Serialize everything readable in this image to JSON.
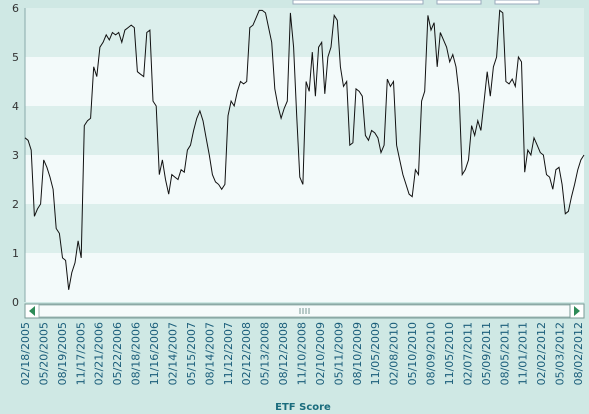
{
  "chart_data": {
    "type": "line",
    "title": "",
    "xlabel": "ETF Score",
    "ylabel": "",
    "ylim": [
      0,
      6
    ],
    "yticks": [
      0,
      1,
      2,
      3,
      4,
      5,
      6
    ],
    "grid": true,
    "legend": "none",
    "x_tick_labels": [
      "02/18/2005",
      "05/20/2005",
      "08/19/2005",
      "11/17/2005",
      "02/21/2006",
      "05/22/2006",
      "08/18/2006",
      "11/16/2006",
      "02/14/2007",
      "05/15/2007",
      "08/14/2007",
      "11/12/2007",
      "02/12/2008",
      "05/13/2008",
      "08/12/2008",
      "11/10/2008",
      "02/10/2009",
      "05/11/2009",
      "08/10/2009",
      "11/05/2009",
      "02/08/2010",
      "05/10/2010",
      "08/09/2010",
      "11/05/2010",
      "02/07/2011",
      "05/09/2011",
      "08/05/2011",
      "11/01/2011",
      "02/02/2012",
      "05/03/2012",
      "08/02/2012"
    ],
    "series": [
      {
        "color": "#111111",
        "points": [
          [
            0,
            3.35
          ],
          [
            0.1,
            3.3
          ],
          [
            0.2,
            3.1
          ],
          [
            0.3,
            1.75
          ],
          [
            0.4,
            1.9
          ],
          [
            0.5,
            2.0
          ],
          [
            0.6,
            2.9
          ],
          [
            0.7,
            2.75
          ],
          [
            0.8,
            2.55
          ],
          [
            0.9,
            2.3
          ],
          [
            1.0,
            1.5
          ],
          [
            1.1,
            1.4
          ],
          [
            1.2,
            0.9
          ],
          [
            1.3,
            0.85
          ],
          [
            1.4,
            0.25
          ],
          [
            1.5,
            0.6
          ],
          [
            1.6,
            0.8
          ],
          [
            1.7,
            1.25
          ],
          [
            1.8,
            0.9
          ],
          [
            1.9,
            3.6
          ],
          [
            2.0,
            3.7
          ],
          [
            2.1,
            3.75
          ],
          [
            2.2,
            4.8
          ],
          [
            2.3,
            4.6
          ],
          [
            2.4,
            5.2
          ],
          [
            2.5,
            5.3
          ],
          [
            2.6,
            5.45
          ],
          [
            2.7,
            5.35
          ],
          [
            2.8,
            5.5
          ],
          [
            2.9,
            5.45
          ],
          [
            3.0,
            5.5
          ],
          [
            3.1,
            5.3
          ],
          [
            3.2,
            5.55
          ],
          [
            3.3,
            5.6
          ],
          [
            3.4,
            5.65
          ],
          [
            3.5,
            5.6
          ],
          [
            3.6,
            4.7
          ],
          [
            3.7,
            4.65
          ],
          [
            3.8,
            4.6
          ],
          [
            3.9,
            5.5
          ],
          [
            4.0,
            5.55
          ],
          [
            4.1,
            4.1
          ],
          [
            4.2,
            4.0
          ],
          [
            4.3,
            2.6
          ],
          [
            4.4,
            2.9
          ],
          [
            4.5,
            2.5
          ],
          [
            4.6,
            2.2
          ],
          [
            4.7,
            2.6
          ],
          [
            4.8,
            2.55
          ],
          [
            4.9,
            2.5
          ],
          [
            5.0,
            2.7
          ],
          [
            5.1,
            2.65
          ],
          [
            5.2,
            3.1
          ],
          [
            5.3,
            3.2
          ],
          [
            5.4,
            3.5
          ],
          [
            5.5,
            3.75
          ],
          [
            5.6,
            3.9
          ],
          [
            5.7,
            3.7
          ],
          [
            5.8,
            3.35
          ],
          [
            5.9,
            3.0
          ],
          [
            6.0,
            2.6
          ],
          [
            6.1,
            2.45
          ],
          [
            6.2,
            2.4
          ],
          [
            6.3,
            2.3
          ],
          [
            6.4,
            2.4
          ],
          [
            6.5,
            3.8
          ],
          [
            6.6,
            4.1
          ],
          [
            6.7,
            4.0
          ],
          [
            6.8,
            4.3
          ],
          [
            6.9,
            4.5
          ],
          [
            7.0,
            4.45
          ],
          [
            7.1,
            4.5
          ],
          [
            7.2,
            5.6
          ],
          [
            7.3,
            5.65
          ],
          [
            7.4,
            5.8
          ],
          [
            7.5,
            5.95
          ],
          [
            7.6,
            5.95
          ],
          [
            7.7,
            5.9
          ],
          [
            7.8,
            5.6
          ],
          [
            7.9,
            5.3
          ],
          [
            8.0,
            4.35
          ],
          [
            8.1,
            4.0
          ],
          [
            8.2,
            3.75
          ],
          [
            8.3,
            3.95
          ],
          [
            8.4,
            4.1
          ],
          [
            8.5,
            5.9
          ],
          [
            8.6,
            5.2
          ],
          [
            8.7,
            3.8
          ],
          [
            8.8,
            2.55
          ],
          [
            8.9,
            2.4
          ],
          [
            9.0,
            4.5
          ],
          [
            9.1,
            4.3
          ],
          [
            9.2,
            5.1
          ],
          [
            9.3,
            4.2
          ],
          [
            9.4,
            5.2
          ],
          [
            9.5,
            5.3
          ],
          [
            9.6,
            4.25
          ],
          [
            9.7,
            5.0
          ],
          [
            9.8,
            5.2
          ],
          [
            9.9,
            5.85
          ],
          [
            10.0,
            5.75
          ],
          [
            10.1,
            4.8
          ],
          [
            10.2,
            4.4
          ],
          [
            10.3,
            4.5
          ],
          [
            10.4,
            3.2
          ],
          [
            10.5,
            3.25
          ],
          [
            10.6,
            4.35
          ],
          [
            10.7,
            4.3
          ],
          [
            10.8,
            4.2
          ],
          [
            10.9,
            3.4
          ],
          [
            11.0,
            3.3
          ],
          [
            11.1,
            3.5
          ],
          [
            11.2,
            3.45
          ],
          [
            11.3,
            3.35
          ],
          [
            11.4,
            3.05
          ],
          [
            11.5,
            3.2
          ],
          [
            11.6,
            4.55
          ],
          [
            11.7,
            4.4
          ],
          [
            11.8,
            4.5
          ],
          [
            11.9,
            3.2
          ],
          [
            12.0,
            2.9
          ],
          [
            12.1,
            2.6
          ],
          [
            12.2,
            2.4
          ],
          [
            12.3,
            2.2
          ],
          [
            12.4,
            2.15
          ],
          [
            12.5,
            2.7
          ],
          [
            12.6,
            2.6
          ],
          [
            12.7,
            4.1
          ],
          [
            12.8,
            4.3
          ],
          [
            12.9,
            5.85
          ],
          [
            13.0,
            5.55
          ],
          [
            13.1,
            5.7
          ],
          [
            13.2,
            4.8
          ],
          [
            13.3,
            5.5
          ],
          [
            13.4,
            5.35
          ],
          [
            13.5,
            5.2
          ],
          [
            13.6,
            4.9
          ],
          [
            13.7,
            5.05
          ],
          [
            13.8,
            4.8
          ],
          [
            13.9,
            4.25
          ],
          [
            14.0,
            2.6
          ],
          [
            14.1,
            2.7
          ],
          [
            14.2,
            2.9
          ],
          [
            14.3,
            3.6
          ],
          [
            14.4,
            3.4
          ],
          [
            14.5,
            3.7
          ],
          [
            14.6,
            3.5
          ],
          [
            14.7,
            4.1
          ],
          [
            14.8,
            4.7
          ],
          [
            14.9,
            4.2
          ],
          [
            15.0,
            4.8
          ],
          [
            15.1,
            5.0
          ],
          [
            15.2,
            5.95
          ],
          [
            15.3,
            5.9
          ],
          [
            15.4,
            4.5
          ],
          [
            15.5,
            4.45
          ],
          [
            15.6,
            4.55
          ],
          [
            15.7,
            4.4
          ],
          [
            15.8,
            5.0
          ],
          [
            15.9,
            4.9
          ],
          [
            16.0,
            2.65
          ],
          [
            16.1,
            3.1
          ],
          [
            16.2,
            3.0
          ],
          [
            16.3,
            3.35
          ],
          [
            16.4,
            3.2
          ],
          [
            16.5,
            3.05
          ],
          [
            16.6,
            3.0
          ],
          [
            16.7,
            2.6
          ],
          [
            16.8,
            2.55
          ],
          [
            16.9,
            2.3
          ],
          [
            17.0,
            2.7
          ],
          [
            17.1,
            2.75
          ],
          [
            17.2,
            2.4
          ],
          [
            17.3,
            1.8
          ],
          [
            17.4,
            1.85
          ],
          [
            17.5,
            2.15
          ],
          [
            17.6,
            2.4
          ],
          [
            17.7,
            2.7
          ],
          [
            17.8,
            2.9
          ],
          [
            17.9,
            3.0
          ]
        ]
      }
    ]
  }
}
